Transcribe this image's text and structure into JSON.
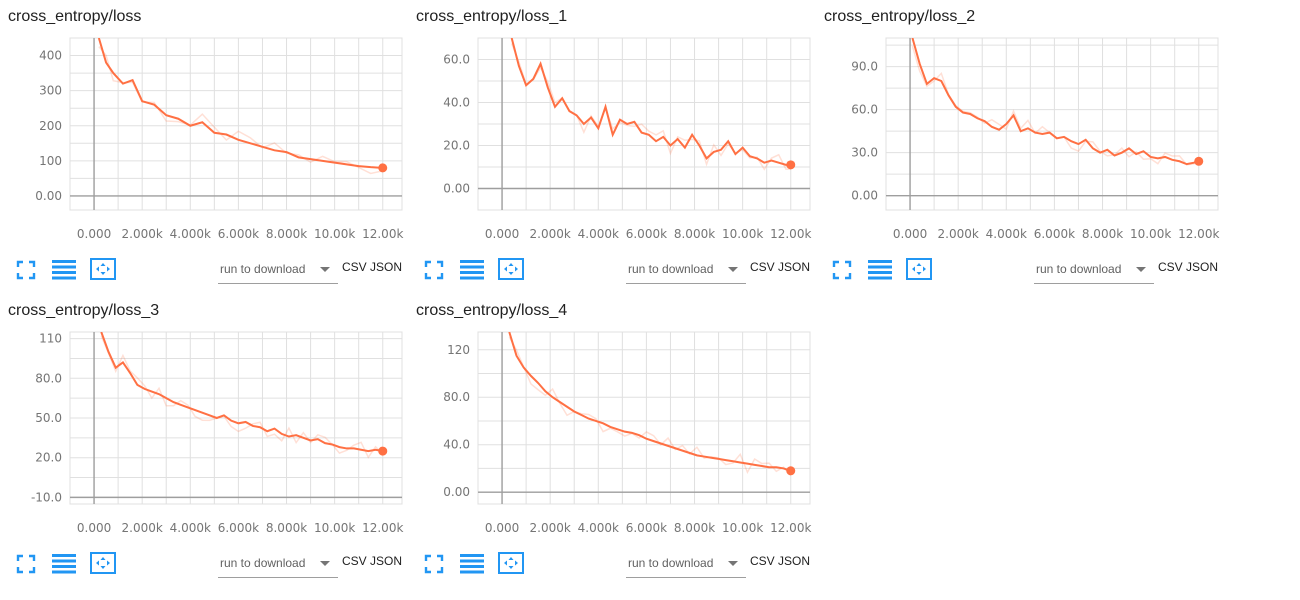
{
  "toolbar": {
    "run_select_label": "run to download",
    "csv_label": "CSV",
    "json_label": "JSON"
  },
  "icons": [
    "fullscreen-icon",
    "toggle-y-log-icon",
    "fit-domain-icon"
  ],
  "colors": {
    "series": "#ff7043",
    "grid": "#e0e0e0",
    "axis": "#9e9e9e"
  },
  "footer_text": "",
  "chart_data": [
    {
      "type": "line",
      "title": "cross_entropy/loss",
      "xlim": [
        -1000,
        12800
      ],
      "ylim": [
        -40,
        450
      ],
      "x_ticks": [
        0,
        2000,
        4000,
        6000,
        8000,
        10000,
        12000
      ],
      "x_tick_labels": [
        "0.000",
        "2.000k",
        "4.000k",
        "6.000k",
        "8.000k",
        "10.00k",
        "12.00k"
      ],
      "y_ticks": [
        0,
        100,
        200,
        300,
        400
      ],
      "y_tick_labels": [
        "0.00",
        "100",
        "200",
        "300",
        "400"
      ],
      "grid": true,
      "series": [
        {
          "x": [
            200,
            500,
            800,
            1200,
            1600,
            2000,
            2500,
            3000,
            3500,
            4000,
            4500,
            5000,
            5500,
            6000,
            6500,
            7000,
            7500,
            8000,
            8500,
            9000,
            9500,
            10000,
            10500,
            11000,
            11500,
            12000
          ],
          "values": [
            450,
            380,
            350,
            320,
            330,
            270,
            260,
            230,
            220,
            200,
            210,
            180,
            175,
            160,
            150,
            140,
            130,
            125,
            110,
            105,
            100,
            95,
            90,
            85,
            82,
            80
          ]
        }
      ]
    },
    {
      "type": "line",
      "title": "cross_entropy/loss_1",
      "xlim": [
        -1000,
        12800
      ],
      "ylim": [
        -10,
        70
      ],
      "x_ticks": [
        0,
        2000,
        4000,
        6000,
        8000,
        10000,
        12000
      ],
      "x_tick_labels": [
        "0.000",
        "2.000k",
        "4.000k",
        "6.000k",
        "8.000k",
        "10.00k",
        "12.00k"
      ],
      "y_ticks": [
        0,
        20,
        40,
        60
      ],
      "y_tick_labels": [
        "0.00",
        "20.0",
        "40.0",
        "60.0"
      ],
      "grid": true,
      "series": [
        {
          "x": [
            400,
            700,
            1000,
            1300,
            1600,
            1900,
            2200,
            2500,
            2800,
            3100,
            3400,
            3700,
            4000,
            4300,
            4600,
            4900,
            5200,
            5500,
            5800,
            6100,
            6400,
            6700,
            7000,
            7300,
            7600,
            7900,
            8200,
            8500,
            8800,
            9100,
            9400,
            9700,
            10000,
            10300,
            10600,
            10900,
            11200,
            11500,
            11800,
            12000
          ],
          "values": [
            70,
            57,
            48,
            51,
            58,
            47,
            38,
            42,
            36,
            34,
            30,
            33,
            28,
            38,
            25,
            32,
            30,
            31,
            26,
            25,
            22,
            24,
            20,
            23,
            19,
            25,
            20,
            14,
            17,
            18,
            22,
            16,
            19,
            15,
            14,
            12,
            13,
            12,
            11,
            11
          ]
        }
      ]
    },
    {
      "type": "line",
      "title": "cross_entropy/loss_2",
      "xlim": [
        -1000,
        12800
      ],
      "ylim": [
        -10,
        110
      ],
      "x_ticks": [
        0,
        2000,
        4000,
        6000,
        8000,
        10000,
        12000
      ],
      "x_tick_labels": [
        "0.000",
        "2.000k",
        "4.000k",
        "6.000k",
        "8.000k",
        "10.00k",
        "12.00k"
      ],
      "y_ticks": [
        0,
        30,
        60,
        90
      ],
      "y_tick_labels": [
        "0.00",
        "30.0",
        "60.0",
        "90.0"
      ],
      "grid": true,
      "series": [
        {
          "x": [
            100,
            400,
            700,
            1000,
            1300,
            1600,
            1900,
            2200,
            2500,
            2800,
            3100,
            3400,
            3700,
            4000,
            4300,
            4600,
            4900,
            5200,
            5500,
            5800,
            6100,
            6400,
            6700,
            7000,
            7300,
            7600,
            7900,
            8200,
            8500,
            8800,
            9100,
            9400,
            9700,
            10000,
            10300,
            10600,
            10900,
            11200,
            11500,
            11800,
            12000
          ],
          "values": [
            110,
            92,
            78,
            82,
            80,
            70,
            62,
            58,
            57,
            54,
            52,
            48,
            46,
            50,
            56,
            45,
            47,
            44,
            43,
            44,
            40,
            41,
            38,
            36,
            39,
            33,
            30,
            32,
            28,
            30,
            33,
            29,
            31,
            27,
            26,
            27,
            25,
            24,
            22,
            23,
            24
          ]
        }
      ]
    },
    {
      "type": "line",
      "title": "cross_entropy/loss_3",
      "xlim": [
        -1000,
        12800
      ],
      "ylim": [
        -15,
        115
      ],
      "x_ticks": [
        0,
        2000,
        4000,
        6000,
        8000,
        10000,
        12000
      ],
      "x_tick_labels": [
        "0.000",
        "2.000k",
        "4.000k",
        "6.000k",
        "8.000k",
        "10.00k",
        "12.00k"
      ],
      "y_ticks": [
        -10,
        20,
        50,
        80,
        110
      ],
      "y_tick_labels": [
        "-10.0",
        "20.0",
        "50.0",
        "80.0",
        "110"
      ],
      "grid": true,
      "series": [
        {
          "x": [
            300,
            600,
            900,
            1200,
            1500,
            1800,
            2100,
            2400,
            2700,
            3000,
            3300,
            3600,
            3900,
            4200,
            4500,
            4800,
            5100,
            5400,
            5700,
            6000,
            6300,
            6600,
            6900,
            7200,
            7500,
            7800,
            8100,
            8400,
            8700,
            9000,
            9300,
            9600,
            9900,
            10200,
            10500,
            10800,
            11100,
            11400,
            11700,
            12000
          ],
          "values": [
            115,
            100,
            88,
            92,
            84,
            75,
            72,
            70,
            68,
            65,
            62,
            60,
            58,
            56,
            54,
            52,
            50,
            52,
            48,
            46,
            47,
            44,
            43,
            40,
            42,
            38,
            36,
            37,
            35,
            33,
            34,
            31,
            30,
            28,
            27,
            27,
            26,
            25,
            26,
            25
          ]
        }
      ]
    },
    {
      "type": "line",
      "title": "cross_entropy/loss_4",
      "xlim": [
        -1000,
        12800
      ],
      "ylim": [
        -10,
        135
      ],
      "x_ticks": [
        0,
        2000,
        4000,
        6000,
        8000,
        10000,
        12000
      ],
      "x_tick_labels": [
        "0.000",
        "2.000k",
        "4.000k",
        "6.000k",
        "8.000k",
        "10.00k",
        "12.00k"
      ],
      "y_ticks": [
        0,
        40,
        80,
        120
      ],
      "y_tick_labels": [
        "0.00",
        "40.0",
        "80.0",
        "120"
      ],
      "grid": true,
      "series": [
        {
          "x": [
            300,
            600,
            900,
            1200,
            1500,
            1800,
            2100,
            2400,
            2700,
            3000,
            3300,
            3600,
            3900,
            4200,
            4500,
            4800,
            5100,
            5400,
            5700,
            6000,
            6300,
            6600,
            6900,
            7200,
            7500,
            7800,
            8100,
            8400,
            8700,
            9000,
            9300,
            9600,
            9900,
            10200,
            10500,
            10800,
            11100,
            11400,
            11700,
            12000
          ],
          "values": [
            135,
            115,
            105,
            98,
            92,
            85,
            80,
            76,
            72,
            68,
            65,
            62,
            60,
            58,
            55,
            53,
            51,
            50,
            48,
            45,
            43,
            41,
            39,
            37,
            35,
            33,
            31,
            30,
            29,
            28,
            27,
            26,
            25,
            24,
            23,
            22,
            21,
            21,
            20,
            18
          ]
        }
      ]
    }
  ]
}
